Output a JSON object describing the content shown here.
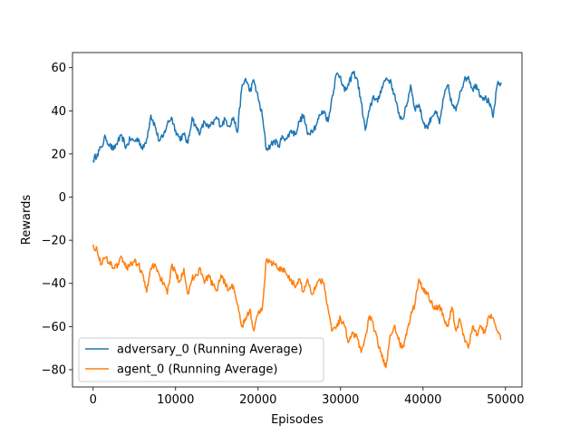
{
  "chart_data": {
    "type": "line",
    "title": "",
    "xlabel": "Episodes",
    "ylabel": "Rewards",
    "xlim": [
      -2500,
      52000
    ],
    "ylim": [
      -88,
      67
    ],
    "xticks": [
      0,
      10000,
      20000,
      30000,
      40000,
      50000
    ],
    "yticks": [
      -80,
      -60,
      -40,
      -20,
      0,
      20,
      40,
      60
    ],
    "grid": false,
    "legend_position": "lower-left",
    "series": [
      {
        "name": "adversary_0 (Running Average)",
        "color": "#1f77b4",
        "x": [
          0,
          500,
          1000,
          1500,
          2000,
          2500,
          3000,
          3500,
          4000,
          4500,
          5000,
          5500,
          6000,
          6500,
          7000,
          7500,
          8000,
          8500,
          9000,
          9500,
          10000,
          10500,
          11000,
          11500,
          12000,
          12500,
          13000,
          13500,
          14000,
          14500,
          15000,
          15500,
          16000,
          16500,
          17000,
          17500,
          18000,
          18500,
          19000,
          19500,
          20000,
          20500,
          21000,
          21500,
          22000,
          22500,
          23000,
          23500,
          24000,
          24500,
          25000,
          25500,
          26000,
          26500,
          27000,
          27500,
          28000,
          28500,
          29000,
          29500,
          30000,
          30500,
          31000,
          31500,
          32000,
          32500,
          33000,
          33500,
          34000,
          34500,
          35000,
          35500,
          36000,
          36500,
          37000,
          37500,
          38000,
          38500,
          39000,
          39500,
          40000,
          40500,
          41000,
          41500,
          42000,
          42500,
          43000,
          43500,
          44000,
          44500,
          45000,
          45500,
          46000,
          46500,
          47000,
          47500,
          48000,
          48500,
          49000,
          49500
        ],
        "y": [
          17,
          20,
          23,
          28,
          24,
          22,
          26,
          28,
          23,
          27,
          26,
          27,
          22,
          27,
          38,
          33,
          26,
          28,
          34,
          37,
          31,
          27,
          29,
          25,
          37,
          32,
          30,
          35,
          32,
          34,
          37,
          33,
          36,
          33,
          37,
          30,
          50,
          55,
          49,
          54,
          46,
          38,
          22,
          24,
          26,
          24,
          28,
          27,
          31,
          29,
          35,
          38,
          29,
          31,
          33,
          38,
          40,
          35,
          47,
          57,
          56,
          49,
          52,
          58,
          55,
          44,
          31,
          40,
          47,
          44,
          51,
          55,
          54,
          48,
          39,
          36,
          42,
          52,
          41,
          43,
          35,
          32,
          37,
          40,
          34,
          46,
          52,
          43,
          40,
          49,
          54,
          56,
          50,
          52,
          47,
          46,
          44,
          37,
          52,
          53
        ]
      },
      {
        "name": "agent_0 (Running Average)",
        "color": "#ff7f0e",
        "x": [
          0,
          500,
          1000,
          1500,
          2000,
          2500,
          3000,
          3500,
          4000,
          4500,
          5000,
          5500,
          6000,
          6500,
          7000,
          7500,
          8000,
          8500,
          9000,
          9500,
          10000,
          10500,
          11000,
          11500,
          12000,
          12500,
          13000,
          13500,
          14000,
          14500,
          15000,
          15500,
          16000,
          16500,
          17000,
          17500,
          18000,
          18500,
          19000,
          19500,
          20000,
          20500,
          21000,
          21500,
          22000,
          22500,
          23000,
          23500,
          24000,
          24500,
          25000,
          25500,
          26000,
          26500,
          27000,
          27500,
          28000,
          28500,
          29000,
          29500,
          30000,
          30500,
          31000,
          31500,
          32000,
          32500,
          33000,
          33500,
          34000,
          34500,
          35000,
          35500,
          36000,
          36500,
          37000,
          37500,
          38000,
          38500,
          39000,
          39500,
          40000,
          40500,
          41000,
          41500,
          42000,
          42500,
          43000,
          43500,
          44000,
          44500,
          45000,
          45500,
          46000,
          46500,
          47000,
          47500,
          48000,
          48500,
          49000,
          49500
        ],
        "y": [
          -22,
          -25,
          -31,
          -28,
          -30,
          -33,
          -31,
          -28,
          -33,
          -31,
          -30,
          -31,
          -36,
          -44,
          -33,
          -31,
          -36,
          -40,
          -45,
          -32,
          -35,
          -39,
          -33,
          -45,
          -38,
          -36,
          -33,
          -40,
          -36,
          -41,
          -43,
          -36,
          -40,
          -43,
          -41,
          -50,
          -60,
          -57,
          -52,
          -62,
          -54,
          -52,
          -29,
          -30,
          -31,
          -34,
          -33,
          -36,
          -38,
          -42,
          -38,
          -44,
          -38,
          -45,
          -41,
          -38,
          -40,
          -52,
          -62,
          -60,
          -56,
          -60,
          -67,
          -63,
          -65,
          -72,
          -65,
          -55,
          -60,
          -67,
          -74,
          -79,
          -64,
          -60,
          -66,
          -70,
          -64,
          -55,
          -50,
          -38,
          -42,
          -45,
          -48,
          -52,
          -50,
          -56,
          -60,
          -51,
          -62,
          -57,
          -65,
          -70,
          -60,
          -64,
          -60,
          -63,
          -55,
          -56,
          -62,
          -66
        ]
      }
    ]
  }
}
